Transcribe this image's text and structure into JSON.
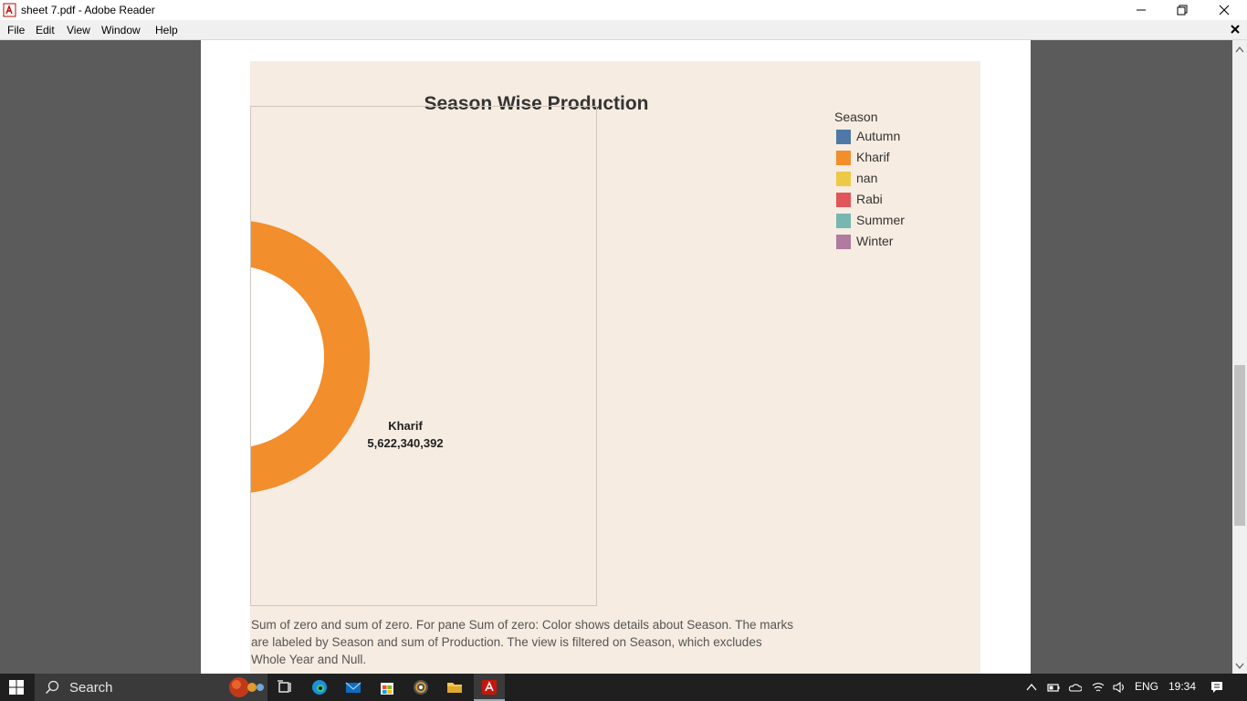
{
  "window": {
    "title": "sheet 7.pdf - Adobe Reader"
  },
  "menu": {
    "items": [
      "File",
      "Edit",
      "View",
      "Window",
      "Help"
    ]
  },
  "chart_data": {
    "type": "pie",
    "title": "Season Wise Production",
    "legend": {
      "title": "Season",
      "position": "top-right",
      "entries": [
        {
          "name": "Autumn",
          "color": "#4e79a7"
        },
        {
          "name": "Kharif",
          "color": "#f28e2b"
        },
        {
          "name": "nan",
          "color": "#edc948"
        },
        {
          "name": "Rabi",
          "color": "#e15759"
        },
        {
          "name": "Summer",
          "color": "#76b7b2"
        },
        {
          "name": "Winter",
          "color": "#b07aa1"
        }
      ]
    },
    "slices": [
      {
        "label": "Kharif",
        "value": 5622340392,
        "value_label": "5,622,340,392",
        "color": "#f28e2b"
      }
    ]
  },
  "caption": "Sum of zero and sum of zero.  For pane Sum of zero:  Color shows details about Season.  The marks are labeled by Season and sum of Production. The view is filtered on Season, which excludes Whole Year and Null.",
  "taskbar": {
    "search_placeholder": "Search",
    "tray": {
      "language": "ENG",
      "time": "19:34"
    }
  }
}
